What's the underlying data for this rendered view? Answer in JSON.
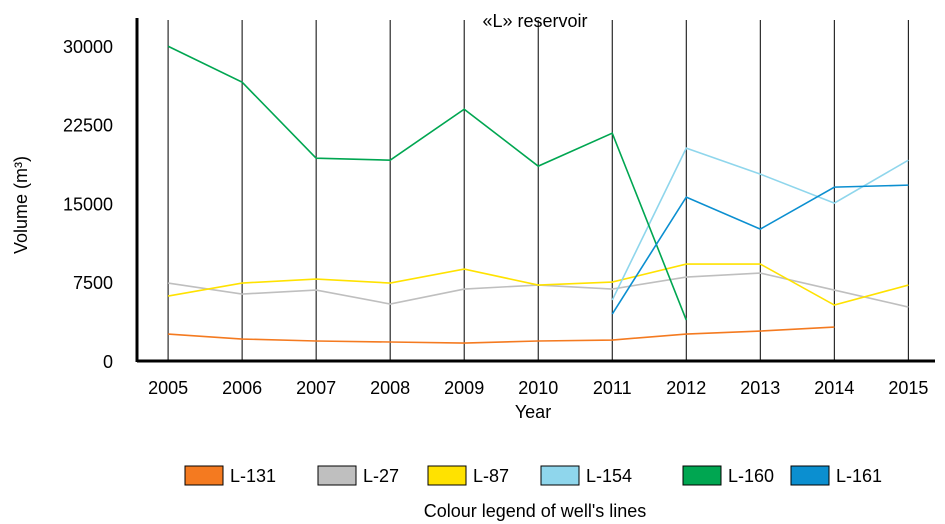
{
  "chart_data": {
    "type": "line",
    "title": "«L» reservoir",
    "x_label": "Year",
    "y_label": "Volume (m³)",
    "legend_title": "Colour legend of well's lines",
    "x": [
      2005,
      2006,
      2007,
      2008,
      2009,
      2010,
      2011,
      2012,
      2013,
      2014,
      2015
    ],
    "xlim": [
      2004.58,
      2015.36
    ],
    "xticks": [
      2005,
      2006,
      2007,
      2008,
      2009,
      2010,
      2011,
      2012,
      2013,
      2014,
      2015
    ],
    "ylim": [
      0,
      32500
    ],
    "yticks": [
      0,
      7500,
      15000,
      22500,
      30000
    ],
    "grid": "x",
    "series": [
      {
        "name": "L-131",
        "color": "#f47a20",
        "values": [
          2571,
          2095,
          1905,
          1810,
          1714,
          1905,
          2000,
          2571,
          2857,
          3238,
          null
        ]
      },
      {
        "name": "L-27",
        "color": "#bfbfbf",
        "values": [
          7429,
          6381,
          6762,
          5429,
          6857,
          7238,
          6857,
          8000,
          8381,
          6762,
          5143
        ]
      },
      {
        "name": "L-87",
        "color": "#ffe200",
        "values": [
          6190,
          7429,
          7810,
          7429,
          8762,
          7238,
          7524,
          9238,
          9238,
          5333,
          7238
        ]
      },
      {
        "name": "L-154",
        "color": "#8fd6ec",
        "values": [
          null,
          null,
          null,
          null,
          null,
          null,
          5810,
          20286,
          17810,
          15048,
          19143
        ]
      },
      {
        "name": "L-160",
        "color": "#00a651",
        "values": [
          30000,
          26571,
          19333,
          19143,
          24000,
          18571,
          21714,
          3905,
          null,
          null,
          null
        ]
      },
      {
        "name": "L-161",
        "color": "#0b8fd0",
        "values": [
          null,
          null,
          null,
          null,
          null,
          null,
          4476,
          15619,
          12571,
          16571,
          16762
        ]
      }
    ]
  }
}
